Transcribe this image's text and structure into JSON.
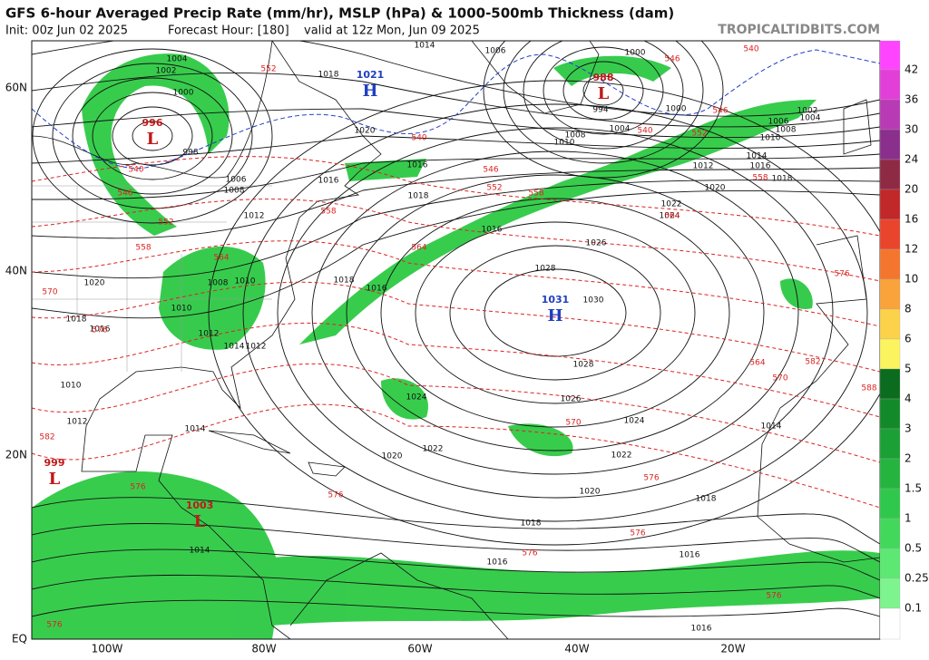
{
  "header": {
    "title": "GFS 6-hour Averaged Precip Rate (mm/hr), MSLP (hPa) & 1000-500mb Thickness (dam)",
    "init": "Init: 00z Jun 02 2025",
    "forecast_hour": "Forecast Hour: [180]",
    "valid": "valid at 12z Mon, Jun 09 2025",
    "site": "TROPICALTIDBITS.COM"
  },
  "map": {
    "lat_labels": [
      "60N",
      "40N",
      "20N",
      "EQ"
    ],
    "lon_labels": [
      "100W",
      "80W",
      "60W",
      "40W",
      "20W"
    ],
    "centers": [
      {
        "letter": "H",
        "value": 1021
      },
      {
        "letter": "L",
        "value": 996
      },
      {
        "letter": "L",
        "value": 988
      },
      {
        "letter": "H",
        "value": 1031
      },
      {
        "letter": "L",
        "value": 999
      },
      {
        "letter": "L",
        "value": 1003
      }
    ],
    "isobar_labels": [
      1014,
      1006,
      1000,
      1004,
      1002,
      1000,
      1018,
      1020,
      998,
      1006,
      1008,
      1012,
      994,
      1004,
      1008,
      1010,
      1000,
      1002,
      1004,
      1006,
      1008,
      1010,
      1014,
      1016,
      1012,
      1018,
      1020,
      1022,
      1024,
      1026,
      1028,
      1030,
      1028,
      1026,
      1024,
      1022,
      1020,
      1018,
      1018,
      1016,
      1016,
      1016,
      1014,
      1020,
      1022,
      1024,
      1018,
      1016,
      1016,
      1018,
      1016,
      1016,
      1010,
      1008,
      1010,
      1012,
      1014,
      1012,
      1016,
      1018,
      1020,
      1014,
      1010,
      1012,
      1014
    ],
    "thickness_labels": [
      552,
      546,
      552,
      558,
      564,
      558,
      546,
      552,
      546,
      540,
      540,
      540,
      540,
      546,
      552,
      558,
      564,
      564,
      558,
      570,
      576,
      570,
      576,
      576,
      576,
      564,
      570,
      576,
      582,
      588,
      582,
      576,
      576,
      576,
      576
    ]
  },
  "colorbar": {
    "labels": [
      "42",
      "36",
      "30",
      "24",
      "20",
      "16",
      "12",
      "10",
      "8",
      "6",
      "5",
      "4",
      "3",
      "2",
      "1.5",
      "1",
      "0.5",
      "0.25",
      "0.1"
    ]
  }
}
